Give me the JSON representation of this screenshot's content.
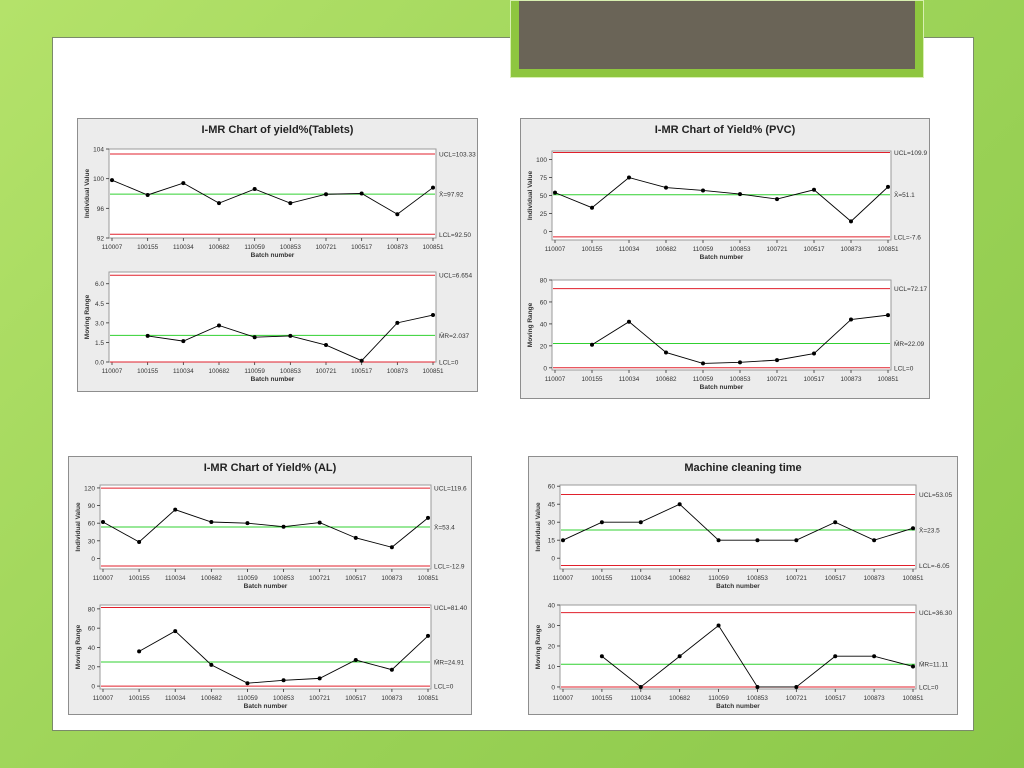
{
  "chart_data": [
    {
      "type": "line",
      "title": "I-MR Chart of yield%(Tablets)",
      "xlabel": "Batch number",
      "categories": [
        "110007",
        "100155",
        "110034",
        "100682",
        "110059",
        "100853",
        "100721",
        "100517",
        "100873",
        "100851"
      ],
      "individual": {
        "ylabel": "Individual Value",
        "values": [
          99.8,
          97.8,
          99.4,
          96.7,
          98.6,
          96.7,
          97.9,
          98.0,
          95.2,
          98.8
        ],
        "yticks": [
          92,
          96,
          100,
          104
        ],
        "ylim": [
          92,
          104
        ],
        "ucl": 103.33,
        "center": 97.92,
        "lcl": 92.5,
        "ucl_label": "UCL=103.33",
        "center_label": "X̄=97.92",
        "lcl_label": "LCL=92.50"
      },
      "moving_range": {
        "ylabel": "Moving Range",
        "values": [
          null,
          2.0,
          1.6,
          2.8,
          1.9,
          2.0,
          1.3,
          0.1,
          3.0,
          3.6
        ],
        "yticks": [
          0.0,
          1.5,
          3.0,
          4.5,
          6.0
        ],
        "ytick_labels": [
          "0.0",
          "1.5",
          "3.0",
          "4.5",
          "6.0"
        ],
        "ylim": [
          0,
          6.9
        ],
        "ucl": 6.654,
        "center": 2.037,
        "lcl": 0,
        "ucl_label": "UCL=6.654",
        "center_label": "M̄R=2.037",
        "lcl_label": "LCL=0"
      }
    },
    {
      "type": "line",
      "title": "I-MR Chart of Yield% (PVC)",
      "xlabel": "Batch number",
      "categories": [
        "110007",
        "100155",
        "110034",
        "100682",
        "110059",
        "100853",
        "100721",
        "100517",
        "100873",
        "100851"
      ],
      "individual": {
        "ylabel": "Individual Value",
        "values": [
          54,
          33,
          75,
          61,
          57,
          52,
          45,
          58,
          14,
          62
        ],
        "yticks": [
          0,
          25,
          50,
          75,
          100
        ],
        "ylim": [
          -12,
          112
        ],
        "ucl": 109.9,
        "center": 51.1,
        "lcl": -7.6,
        "ucl_label": "UCL=109.9",
        "center_label": "X̄=51.1",
        "lcl_label": "LCL=-7.6"
      },
      "moving_range": {
        "ylabel": "Moving Range",
        "values": [
          null,
          21,
          42,
          14,
          4,
          5,
          7,
          13,
          44,
          48
        ],
        "yticks": [
          0,
          20,
          40,
          60,
          80
        ],
        "ytick_labels": [
          "0",
          "20",
          "40",
          "60",
          "80"
        ],
        "ylim": [
          -2,
          80
        ],
        "ucl": 72.17,
        "center": 22.09,
        "lcl": 0,
        "ucl_label": "UCL=72.17",
        "center_label": "M̄R=22.09",
        "lcl_label": "LCL=0"
      }
    },
    {
      "type": "line",
      "title": "I-MR Chart of Yield% (AL)",
      "xlabel": "Batch number",
      "categories": [
        "110007",
        "100155",
        "110034",
        "100682",
        "110059",
        "100853",
        "100721",
        "100517",
        "100873",
        "100851"
      ],
      "individual": {
        "ylabel": "Individual Value",
        "values": [
          62,
          28,
          83,
          62,
          60,
          54,
          61,
          35,
          19,
          69
        ],
        "yticks": [
          0,
          30,
          60,
          90,
          120
        ],
        "ylim": [
          -18,
          125
        ],
        "ucl": 119.6,
        "center": 53.4,
        "lcl": -12.9,
        "ucl_label": "UCL=119.6",
        "center_label": "X̄=53.4",
        "lcl_label": "LCL=-12.9"
      },
      "moving_range": {
        "ylabel": "Moving Range",
        "values": [
          null,
          36,
          57,
          22,
          3,
          6,
          8,
          27,
          17,
          52
        ],
        "yticks": [
          0,
          20,
          40,
          60,
          80
        ],
        "ytick_labels": [
          "0",
          "20",
          "40",
          "60",
          "80"
        ],
        "ylim": [
          -3,
          84
        ],
        "ucl": 81.4,
        "center": 24.91,
        "lcl": 0,
        "ucl_label": "UCL=81.40",
        "center_label": "M̄R=24.91",
        "lcl_label": "LCL=0"
      }
    },
    {
      "type": "line",
      "title": "Machine cleaning time",
      "xlabel": "Batch number",
      "categories": [
        "110007",
        "100155",
        "110034",
        "100682",
        "110059",
        "100853",
        "100721",
        "100517",
        "100873",
        "100851"
      ],
      "individual": {
        "ylabel": "Individual Value",
        "values": [
          15,
          30,
          30,
          45,
          15,
          15,
          15,
          30,
          15,
          25
        ],
        "yticks": [
          0,
          15,
          30,
          45,
          60
        ],
        "ylim": [
          -9,
          61
        ],
        "ucl": 53.05,
        "center": 23.5,
        "lcl": -6.05,
        "ucl_label": "UCL=53.05",
        "center_label": "X̄=23.5",
        "lcl_label": "LCL=-6.05"
      },
      "moving_range": {
        "ylabel": "Moving Range",
        "values": [
          null,
          15,
          0,
          15,
          30,
          0,
          0,
          15,
          15,
          10
        ],
        "yticks": [
          0,
          10,
          20,
          30,
          40
        ],
        "ytick_labels": [
          "0",
          "10",
          "20",
          "30",
          "40"
        ],
        "ylim": [
          -1,
          40
        ],
        "ucl": 36.3,
        "center": 11.11,
        "lcl": 0,
        "ucl_label": "UCL=36.30",
        "center_label": "M̄R=11.11",
        "lcl_label": "LCL=0"
      }
    }
  ],
  "colors": {
    "limit_line": "#e0202c",
    "center_line": "#30d030",
    "data_line": "#000000",
    "panel_bg": "#ececec",
    "plot_bg": "#ffffff"
  }
}
